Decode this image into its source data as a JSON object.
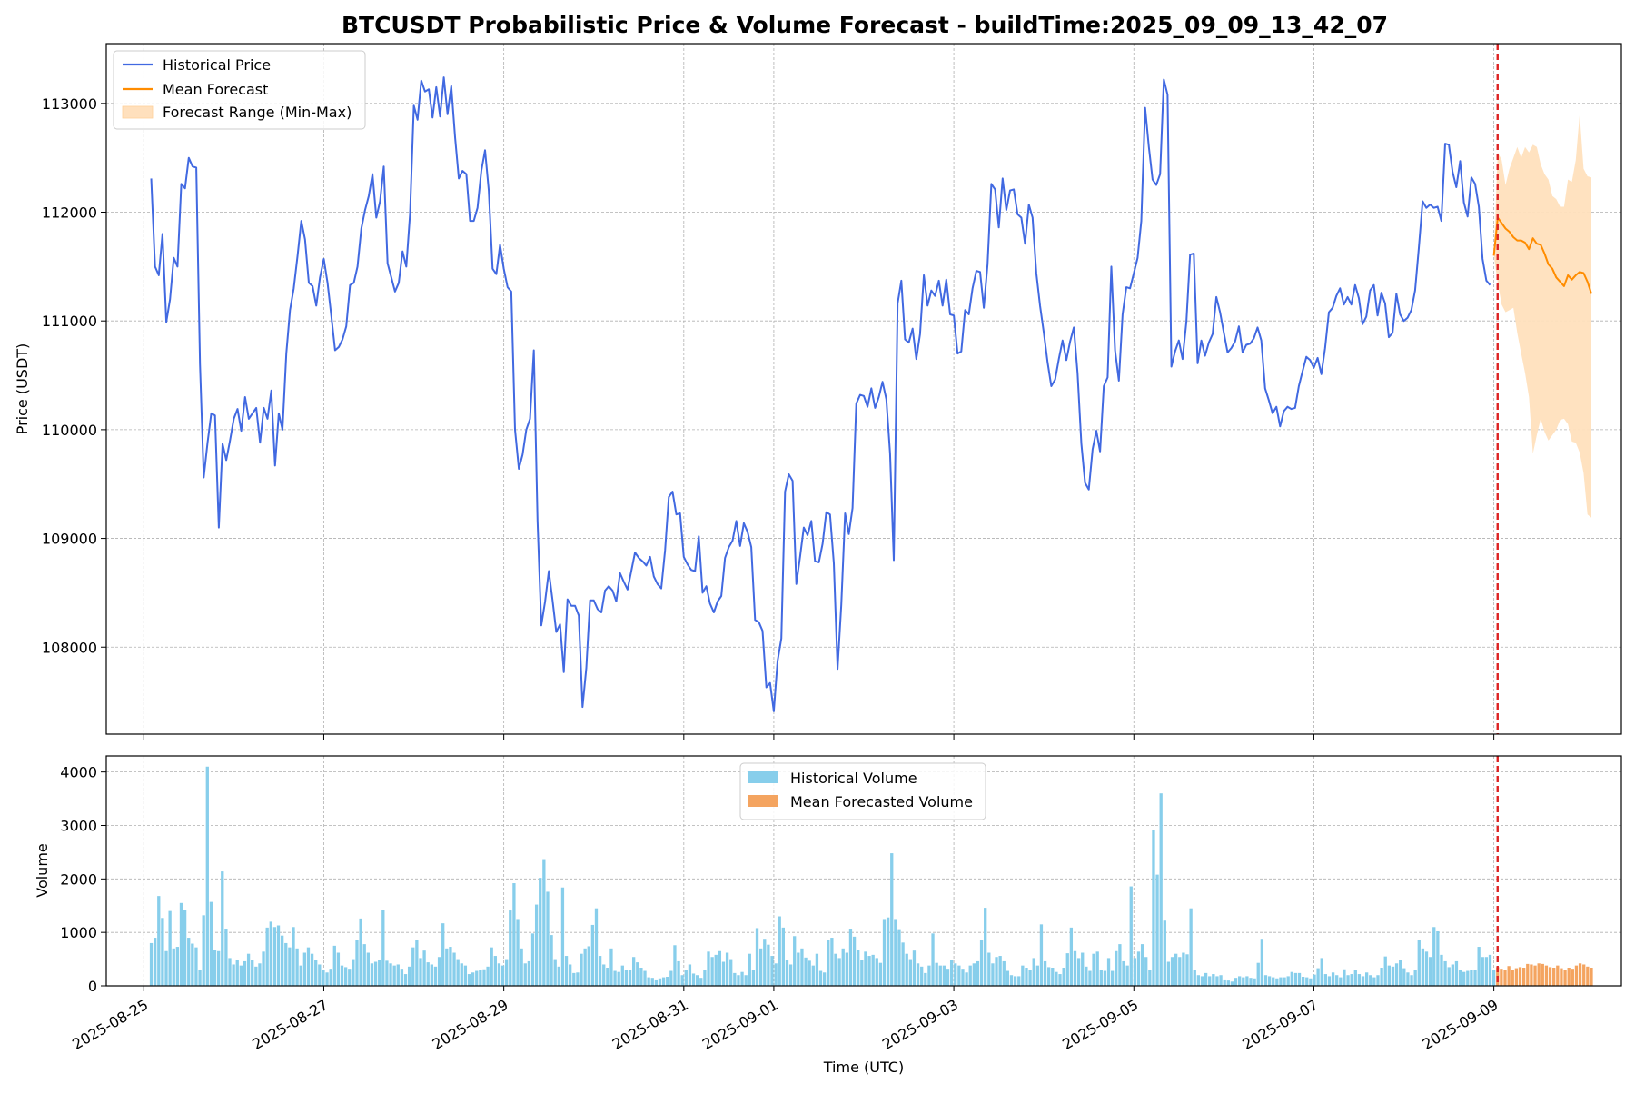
{
  "title": "BTCUSDT Probabilistic Price & Volume Forecast - buildTime:2025_09_09_13_42_07",
  "colors": {
    "historical_price": "#4169e1",
    "mean_forecast": "#ff8c00",
    "forecast_range": "#ffe0bd",
    "historical_volume": "#87ceeb",
    "forecast_volume": "#f4a460",
    "forecast_start_line": "#dd2222",
    "grid": "#b0b0b0"
  },
  "chart_data": [
    {
      "type": "line",
      "ylabel": "Price (USDT)",
      "xlabel": "",
      "grid": true,
      "legend_position": "top-left",
      "xlim": [
        "2025-08-24 14:00",
        "2025-09-10 10:00"
      ],
      "ylim": [
        107200,
        113550
      ],
      "yticks": [
        108000,
        109000,
        110000,
        111000,
        112000,
        113000
      ],
      "forecast_start": "2025-09-09 01:00",
      "legend": [
        "Historical Price",
        "Mean Forecast",
        "Forecast Range (Min-Max)"
      ],
      "series": [
        {
          "name": "Historical Price",
          "x_start": "2025-08-25 02:00",
          "x_end": "2025-09-08 23:00",
          "values": [
            112310,
            111500,
            111420,
            111800,
            110990,
            111200,
            111580,
            111500,
            112260,
            112220,
            112500,
            112420,
            112410,
            110600,
            109560,
            109880,
            110150,
            110130,
            109100,
            109870,
            109720,
            109900,
            110100,
            110190,
            109990,
            110300,
            110100,
            110150,
            110200,
            109880,
            110200,
            110100,
            110360,
            109670,
            110150,
            110000,
            110700,
            111100,
            111300,
            111600,
            111920,
            111750,
            111350,
            111320,
            111140,
            111400,
            111570,
            111350,
            111050,
            110730,
            110760,
            110830,
            110950,
            111330,
            111350,
            111500,
            111850,
            112020,
            112150,
            112350,
            111950,
            112100,
            112420,
            111530,
            111400,
            111270,
            111350,
            111640,
            111500,
            111980,
            112980,
            112850,
            113210,
            113110,
            113130,
            112870,
            113150,
            112880,
            113240,
            112900,
            113160,
            112690,
            112310,
            112380,
            112350,
            111920,
            111920,
            112040,
            112380,
            112570,
            112200,
            111480,
            111430,
            111700,
            111480,
            111310,
            111270,
            110000,
            109640,
            109770,
            110000,
            110100,
            110730,
            109160,
            108200,
            108420,
            108700,
            108430,
            108140,
            108210,
            107770,
            108440,
            108380,
            108380,
            108290,
            107450,
            107810,
            108430,
            108430,
            108350,
            108320,
            108520,
            108560,
            108520,
            108420,
            108680,
            108600,
            108530,
            108700,
            108870,
            108820,
            108790,
            108750,
            108830,
            108650,
            108580,
            108540,
            108890,
            109380,
            109430,
            109220,
            109230,
            108830,
            108760,
            108710,
            108700,
            109020,
            108500,
            108560,
            108400,
            108320,
            108420,
            108470,
            108820,
            108920,
            108980,
            109160,
            108930,
            109140,
            109060,
            108920,
            108250,
            108230,
            108150,
            107630,
            107670,
            107410,
            107870,
            108080,
            109430,
            109590,
            109530,
            108580,
            108830,
            109100,
            109030,
            109160,
            108790,
            108780,
            108950,
            109240,
            109220,
            108770,
            107800,
            108390,
            109230,
            109040,
            109280,
            110240,
            110320,
            110310,
            110210,
            110380,
            110200,
            110300,
            110440,
            110280,
            109780,
            108800,
            111160,
            111370,
            110830,
            110800,
            110930,
            110650,
            110880,
            111420,
            111140,
            111280,
            111230,
            111370,
            111140,
            111380,
            111060,
            111050,
            110700,
            110720,
            111100,
            111060,
            111300,
            111460,
            111450,
            111120,
            111520,
            112260,
            112210,
            111860,
            112310,
            112020,
            112200,
            112210,
            111980,
            111950,
            111710,
            112070,
            111950,
            111440,
            111140,
            110890,
            110620,
            110400,
            110460,
            110650,
            110820,
            110640,
            110810,
            110940,
            110520,
            109870,
            109510,
            109450,
            109820,
            109990,
            109800,
            110400,
            110480,
            111500,
            110730,
            110450,
            111060,
            111310,
            111300,
            111440,
            111580,
            111920,
            112960,
            112600,
            112300,
            112250,
            112350,
            113220,
            113080,
            110580,
            110720,
            110820,
            110650,
            110990,
            111610,
            111620,
            110610,
            110820,
            110680,
            110800,
            110880,
            111220,
            111080,
            110890,
            110710,
            110750,
            110810,
            110950,
            110710,
            110780,
            110790,
            110840,
            110940,
            110820,
            110380,
            110270,
            110150,
            110210,
            110030,
            110170,
            110210,
            110190,
            110200,
            110400,
            110540,
            110670,
            110640,
            110570,
            110660,
            110510,
            110750,
            111080,
            111120,
            111230,
            111300,
            111150,
            111220,
            111150,
            111330,
            111210,
            110970,
            111040,
            111280,
            111330,
            111050,
            111260,
            111160,
            110850,
            110890,
            111250,
            111060,
            111000,
            111030,
            111100,
            111280,
            111670,
            112100,
            112040,
            112070,
            112040,
            112050,
            111920,
            112630,
            112620,
            112370,
            112230,
            112470,
            112090,
            111960,
            112320,
            112260,
            112050,
            111570,
            111370,
            111330
          ]
        },
        {
          "name": "Mean Forecast",
          "x_start": "2025-09-09 00:00",
          "x_end": "2025-09-10 02:00",
          "values": [
            111600,
            111950,
            111900,
            111850,
            111820,
            111770,
            111740,
            111740,
            111720,
            111660,
            111760,
            111710,
            111700,
            111620,
            111520,
            111480,
            111400,
            111360,
            111320,
            111420,
            111380,
            111420,
            111450,
            111440,
            111360,
            111250
          ]
        },
        {
          "name": "Forecast Range (Min-Max)",
          "x_start": "2025-09-09 00:00",
          "x_end": "2025-09-10 02:00",
          "lower": [
            111600,
            111350,
            111150,
            111080,
            111100,
            111120,
            110890,
            110700,
            110520,
            110300,
            109780,
            109950,
            110100,
            109980,
            109900,
            109950,
            110000,
            110090,
            110100,
            110050,
            109890,
            109880,
            109790,
            109600,
            109220,
            109190
          ],
          "upper": [
            111600,
            112550,
            112480,
            112250,
            112400,
            112500,
            112600,
            112500,
            112600,
            112550,
            112620,
            112600,
            112440,
            112350,
            112300,
            112150,
            112120,
            112050,
            112050,
            112300,
            112280,
            112480,
            112900,
            112400,
            112330,
            112320
          ]
        }
      ]
    },
    {
      "type": "bar",
      "ylabel": "Volume",
      "xlabel": "Time (UTC)",
      "grid": true,
      "legend_position": "top-center",
      "xlim": [
        "2025-08-24 14:00",
        "2025-09-10 10:00"
      ],
      "ylim": [
        0,
        4300
      ],
      "yticks": [
        0,
        1000,
        2000,
        3000,
        4000
      ],
      "xticks": [
        "2025-08-25",
        "2025-08-27",
        "2025-08-29",
        "2025-08-31",
        "2025-09-01",
        "2025-09-03",
        "2025-09-05",
        "2025-09-07",
        "2025-09-09"
      ],
      "forecast_start": "2025-09-09 01:00",
      "legend": [
        "Historical Volume",
        "Mean Forecasted Volume"
      ],
      "series": [
        {
          "name": "Historical Volume",
          "x_start": "2025-08-25 02:00",
          "x_end": "2025-09-09 00:00",
          "values": [
            800,
            900,
            1680,
            1270,
            650,
            1400,
            700,
            730,
            1550,
            1420,
            900,
            790,
            720,
            300,
            1320,
            4100,
            1570,
            670,
            650,
            2140,
            1070,
            520,
            400,
            480,
            380,
            460,
            600,
            490,
            360,
            420,
            640,
            1090,
            1200,
            1100,
            1130,
            940,
            800,
            720,
            1100,
            700,
            380,
            620,
            720,
            600,
            480,
            400,
            300,
            250,
            320,
            750,
            620,
            380,
            350,
            320,
            500,
            850,
            1260,
            780,
            620,
            420,
            450,
            490,
            1420,
            470,
            420,
            380,
            400,
            320,
            220,
            360,
            720,
            860,
            520,
            660,
            440,
            400,
            360,
            540,
            1170,
            700,
            730,
            620,
            500,
            420,
            380,
            220,
            250,
            280,
            300,
            310,
            360,
            720,
            560,
            420,
            380,
            500,
            1410,
            1920,
            1250,
            700,
            420,
            460,
            980,
            1520,
            2020,
            2370,
            1760,
            950,
            500,
            360,
            1840,
            560,
            400,
            240,
            250,
            600,
            700,
            740,
            1140,
            1450,
            560,
            400,
            340,
            700,
            280,
            260,
            380,
            300,
            300,
            540,
            440,
            340,
            280,
            160,
            150,
            120,
            140,
            160,
            170,
            280,
            760,
            460,
            200,
            300,
            400,
            230,
            200,
            150,
            300,
            640,
            540,
            580,
            650,
            450,
            620,
            500,
            240,
            200,
            260,
            200,
            600,
            300,
            1080,
            700,
            880,
            770,
            560,
            420,
            1300,
            1090,
            480,
            400,
            930,
            620,
            700,
            530,
            470,
            380,
            600,
            280,
            250,
            850,
            900,
            600,
            520,
            700,
            620,
            1070,
            920,
            670,
            480,
            640,
            560,
            580,
            520,
            430,
            1250,
            1280,
            2480,
            1250,
            1060,
            810,
            600,
            500,
            660,
            420,
            360,
            240,
            380,
            980,
            430,
            380,
            380,
            320,
            480,
            420,
            380,
            320,
            250,
            380,
            420,
            460,
            850,
            1460,
            620,
            420,
            540,
            560,
            460,
            280,
            200,
            180,
            180,
            380,
            340,
            300,
            520,
            380,
            1150,
            460,
            350,
            340,
            260,
            220,
            340,
            610,
            1090,
            650,
            520,
            620,
            360,
            280,
            600,
            640,
            300,
            280,
            520,
            280,
            650,
            780,
            460,
            380,
            1860,
            520,
            640,
            780,
            540,
            300,
            2910,
            2080,
            3600,
            1220,
            450,
            540,
            600,
            540,
            620,
            590,
            1450,
            300,
            200,
            180,
            240,
            180,
            220,
            180,
            200,
            120,
            100,
            80,
            150,
            180,
            160,
            180,
            150,
            140,
            430,
            880,
            200,
            180,
            160,
            140,
            160,
            160,
            180,
            260,
            240,
            240,
            170,
            160,
            140,
            210,
            330,
            520,
            220,
            180,
            250,
            200,
            160,
            310,
            200,
            220,
            300,
            220,
            180,
            250,
            200,
            160,
            200,
            340,
            550,
            380,
            360,
            420,
            480,
            330,
            250,
            200,
            300,
            860,
            700,
            640,
            540,
            1100,
            1020,
            580,
            460,
            350,
            400,
            460,
            300,
            260,
            280,
            290,
            300,
            730,
            540,
            540,
            580,
            300
          ]
        },
        {
          "name": "Mean Forecasted Volume",
          "x_start": "2025-09-09 01:00",
          "x_end": "2025-09-10 02:00",
          "values": [
            350,
            320,
            300,
            370,
            300,
            330,
            350,
            340,
            410,
            400,
            380,
            420,
            410,
            380,
            350,
            340,
            380,
            330,
            300,
            340,
            320,
            380,
            420,
            400,
            360,
            340
          ]
        }
      ]
    }
  ]
}
